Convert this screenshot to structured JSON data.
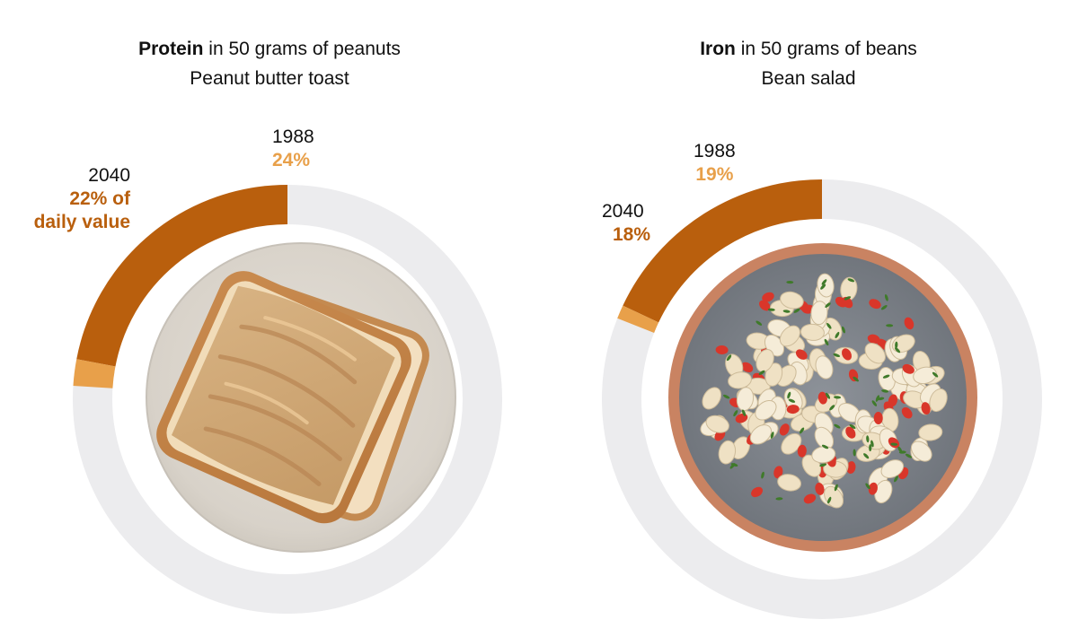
{
  "colors": {
    "ring_track": "#ececee",
    "color_2040": "#b95f0d",
    "color_1988": "#e8a04a"
  },
  "chart_data": [
    {
      "type": "pie",
      "title_bold": "Protein",
      "title_rest": " in 50 grams of peanuts",
      "subtitle": "Peanut butter toast",
      "series": [
        {
          "name": "2040",
          "value": 22,
          "label": "22% of daily value"
        },
        {
          "name": "1988",
          "value": 24,
          "label": "24%"
        }
      ],
      "max": 100,
      "unit": "% of daily value"
    },
    {
      "type": "pie",
      "title_bold": "Iron",
      "title_rest": " in 50 grams of beans",
      "subtitle": "Bean salad",
      "series": [
        {
          "name": "2040",
          "value": 18,
          "label": "18%"
        },
        {
          "name": "1988",
          "value": 19,
          "label": "19%"
        }
      ],
      "max": 100,
      "unit": "% of daily value"
    }
  ],
  "labels": {
    "p0_2040_a": "22% of",
    "p0_2040_b": "daily value"
  }
}
